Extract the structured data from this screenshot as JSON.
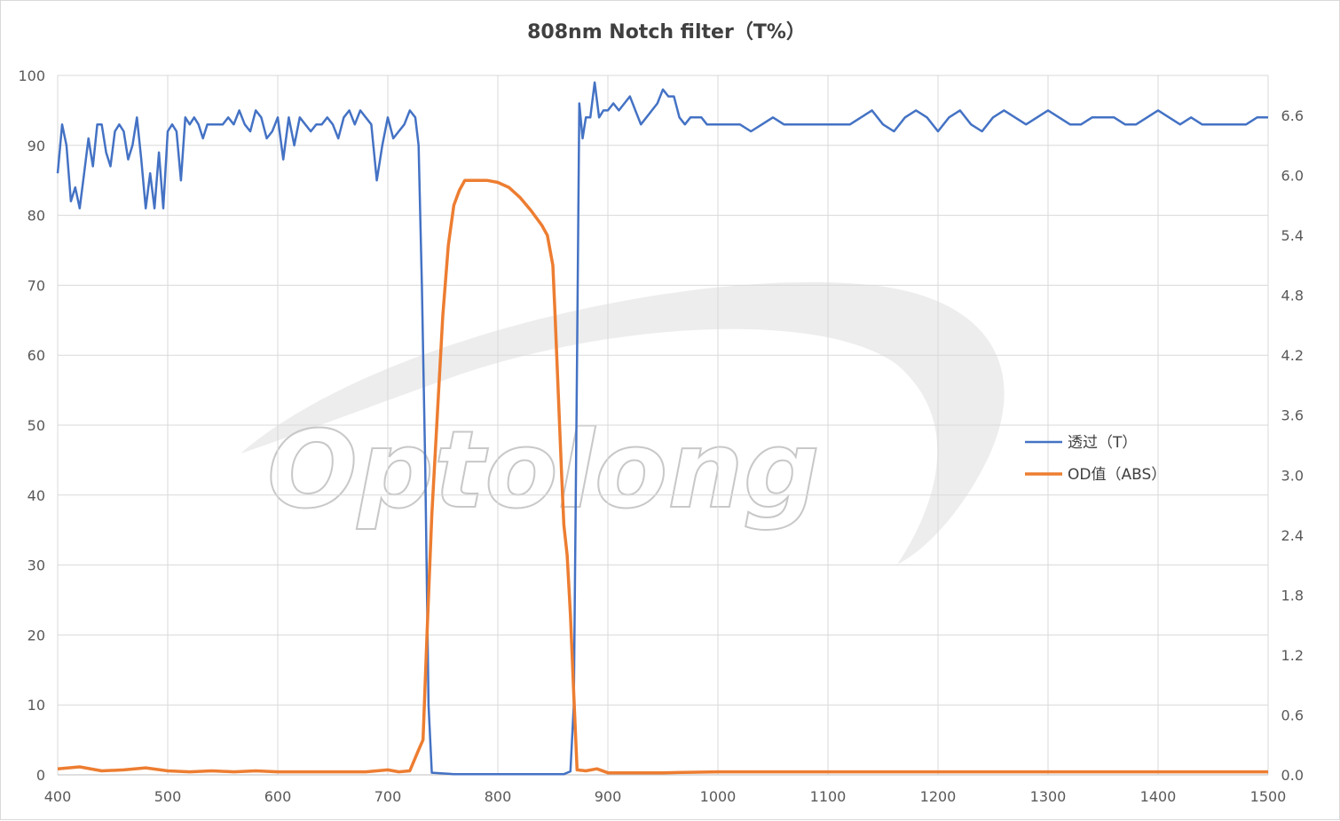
{
  "chart_data": {
    "type": "line",
    "title": "808nm Notch filter（T%）",
    "watermark": "Optolong",
    "x_ticks": [
      "400",
      "500",
      "600",
      "700",
      "800",
      "900",
      "1000",
      "1100",
      "1200",
      "1300",
      "1400",
      "1500"
    ],
    "y_left_ticks": [
      "0",
      "10",
      "20",
      "30",
      "40",
      "50",
      "60",
      "70",
      "80",
      "90",
      "100"
    ],
    "y_right_ticks": [
      "0.0",
      "0.6",
      "1.2",
      "1.8",
      "2.4",
      "3.0",
      "3.6",
      "4.2",
      "4.8",
      "5.4",
      "6.0",
      "6.6"
    ],
    "xlim": [
      400,
      1500
    ],
    "ylim_left": [
      0,
      100
    ],
    "ylim_right": [
      0,
      7.0
    ],
    "grid": true,
    "legend_position": "right",
    "series": [
      {
        "name": "透过（T）",
        "axis": "left",
        "color": "#4472c4",
        "points": [
          [
            400,
            86
          ],
          [
            404,
            93
          ],
          [
            408,
            90
          ],
          [
            412,
            82
          ],
          [
            416,
            84
          ],
          [
            420,
            81
          ],
          [
            424,
            86
          ],
          [
            428,
            91
          ],
          [
            432,
            87
          ],
          [
            436,
            93
          ],
          [
            440,
            93
          ],
          [
            444,
            89
          ],
          [
            448,
            87
          ],
          [
            452,
            92
          ],
          [
            456,
            93
          ],
          [
            460,
            92
          ],
          [
            464,
            88
          ],
          [
            468,
            90
          ],
          [
            472,
            94
          ],
          [
            476,
            88
          ],
          [
            480,
            81
          ],
          [
            484,
            86
          ],
          [
            488,
            81
          ],
          [
            492,
            89
          ],
          [
            496,
            81
          ],
          [
            500,
            92
          ],
          [
            504,
            93
          ],
          [
            508,
            92
          ],
          [
            512,
            85
          ],
          [
            516,
            94
          ],
          [
            520,
            93
          ],
          [
            524,
            94
          ],
          [
            528,
            93
          ],
          [
            532,
            91
          ],
          [
            536,
            93
          ],
          [
            540,
            93
          ],
          [
            545,
            93
          ],
          [
            550,
            93
          ],
          [
            555,
            94
          ],
          [
            560,
            93
          ],
          [
            565,
            95
          ],
          [
            570,
            93
          ],
          [
            575,
            92
          ],
          [
            580,
            95
          ],
          [
            585,
            94
          ],
          [
            590,
            91
          ],
          [
            595,
            92
          ],
          [
            600,
            94
          ],
          [
            605,
            88
          ],
          [
            610,
            94
          ],
          [
            615,
            90
          ],
          [
            620,
            94
          ],
          [
            625,
            93
          ],
          [
            630,
            92
          ],
          [
            635,
            93
          ],
          [
            640,
            93
          ],
          [
            645,
            94
          ],
          [
            650,
            93
          ],
          [
            655,
            91
          ],
          [
            660,
            94
          ],
          [
            665,
            95
          ],
          [
            670,
            93
          ],
          [
            675,
            95
          ],
          [
            680,
            94
          ],
          [
            685,
            93
          ],
          [
            690,
            85
          ],
          [
            695,
            90
          ],
          [
            700,
            94
          ],
          [
            705,
            91
          ],
          [
            710,
            92
          ],
          [
            715,
            93
          ],
          [
            720,
            95
          ],
          [
            725,
            94
          ],
          [
            728,
            90
          ],
          [
            731,
            70
          ],
          [
            734,
            44
          ],
          [
            737,
            10
          ],
          [
            740,
            0.3
          ],
          [
            760,
            0.1
          ],
          [
            800,
            0.1
          ],
          [
            840,
            0.1
          ],
          [
            860,
            0.1
          ],
          [
            866,
            0.5
          ],
          [
            869,
            10
          ],
          [
            872,
            60
          ],
          [
            874,
            96
          ],
          [
            877,
            91
          ],
          [
            880,
            94
          ],
          [
            884,
            94
          ],
          [
            888,
            99
          ],
          [
            892,
            94
          ],
          [
            896,
            95
          ],
          [
            900,
            95
          ],
          [
            905,
            96
          ],
          [
            910,
            95
          ],
          [
            915,
            96
          ],
          [
            920,
            97
          ],
          [
            925,
            95
          ],
          [
            930,
            93
          ],
          [
            935,
            94
          ],
          [
            940,
            95
          ],
          [
            945,
            96
          ],
          [
            950,
            98
          ],
          [
            955,
            97
          ],
          [
            960,
            97
          ],
          [
            965,
            94
          ],
          [
            970,
            93
          ],
          [
            975,
            94
          ],
          [
            980,
            94
          ],
          [
            985,
            94
          ],
          [
            990,
            93
          ],
          [
            1000,
            93
          ],
          [
            1010,
            93
          ],
          [
            1020,
            93
          ],
          [
            1030,
            92
          ],
          [
            1040,
            93
          ],
          [
            1050,
            94
          ],
          [
            1060,
            93
          ],
          [
            1070,
            93
          ],
          [
            1080,
            93
          ],
          [
            1090,
            93
          ],
          [
            1100,
            93
          ],
          [
            1110,
            93
          ],
          [
            1120,
            93
          ],
          [
            1130,
            94
          ],
          [
            1140,
            95
          ],
          [
            1150,
            93
          ],
          [
            1160,
            92
          ],
          [
            1170,
            94
          ],
          [
            1180,
            95
          ],
          [
            1190,
            94
          ],
          [
            1200,
            92
          ],
          [
            1210,
            94
          ],
          [
            1220,
            95
          ],
          [
            1230,
            93
          ],
          [
            1240,
            92
          ],
          [
            1250,
            94
          ],
          [
            1260,
            95
          ],
          [
            1270,
            94
          ],
          [
            1280,
            93
          ],
          [
            1290,
            94
          ],
          [
            1300,
            95
          ],
          [
            1310,
            94
          ],
          [
            1320,
            93
          ],
          [
            1330,
            93
          ],
          [
            1340,
            94
          ],
          [
            1350,
            94
          ],
          [
            1360,
            94
          ],
          [
            1370,
            93
          ],
          [
            1380,
            93
          ],
          [
            1390,
            94
          ],
          [
            1400,
            95
          ],
          [
            1410,
            94
          ],
          [
            1420,
            93
          ],
          [
            1430,
            94
          ],
          [
            1440,
            93
          ],
          [
            1450,
            93
          ],
          [
            1460,
            93
          ],
          [
            1470,
            93
          ],
          [
            1480,
            93
          ],
          [
            1490,
            94
          ],
          [
            1500,
            94
          ]
        ]
      },
      {
        "name": "OD值（ABS）",
        "axis": "right",
        "color": "#ed7d31",
        "points": [
          [
            400,
            0.06
          ],
          [
            420,
            0.08
          ],
          [
            440,
            0.04
          ],
          [
            460,
            0.05
          ],
          [
            480,
            0.07
          ],
          [
            500,
            0.04
          ],
          [
            520,
            0.03
          ],
          [
            540,
            0.04
          ],
          [
            560,
            0.03
          ],
          [
            580,
            0.04
          ],
          [
            600,
            0.03
          ],
          [
            620,
            0.03
          ],
          [
            640,
            0.03
          ],
          [
            660,
            0.03
          ],
          [
            680,
            0.03
          ],
          [
            700,
            0.05
          ],
          [
            710,
            0.03
          ],
          [
            720,
            0.04
          ],
          [
            728,
            0.25
          ],
          [
            732,
            0.35
          ],
          [
            736,
            1.5
          ],
          [
            740,
            2.6
          ],
          [
            745,
            3.6
          ],
          [
            750,
            4.6
          ],
          [
            755,
            5.3
          ],
          [
            760,
            5.7
          ],
          [
            765,
            5.85
          ],
          [
            770,
            5.95
          ],
          [
            780,
            5.95
          ],
          [
            790,
            5.95
          ],
          [
            800,
            5.93
          ],
          [
            810,
            5.88
          ],
          [
            820,
            5.78
          ],
          [
            830,
            5.65
          ],
          [
            840,
            5.5
          ],
          [
            845,
            5.4
          ],
          [
            850,
            5.1
          ],
          [
            852,
            4.6
          ],
          [
            855,
            3.8
          ],
          [
            858,
            3.0
          ],
          [
            860,
            2.5
          ],
          [
            863,
            2.2
          ],
          [
            866,
            1.6
          ],
          [
            869,
            0.8
          ],
          [
            872,
            0.05
          ],
          [
            880,
            0.04
          ],
          [
            890,
            0.06
          ],
          [
            900,
            0.02
          ],
          [
            950,
            0.02
          ],
          [
            1000,
            0.03
          ],
          [
            1050,
            0.03
          ],
          [
            1100,
            0.03
          ],
          [
            1150,
            0.03
          ],
          [
            1200,
            0.03
          ],
          [
            1250,
            0.03
          ],
          [
            1300,
            0.03
          ],
          [
            1350,
            0.03
          ],
          [
            1400,
            0.03
          ],
          [
            1450,
            0.03
          ],
          [
            1500,
            0.03
          ]
        ]
      }
    ]
  }
}
